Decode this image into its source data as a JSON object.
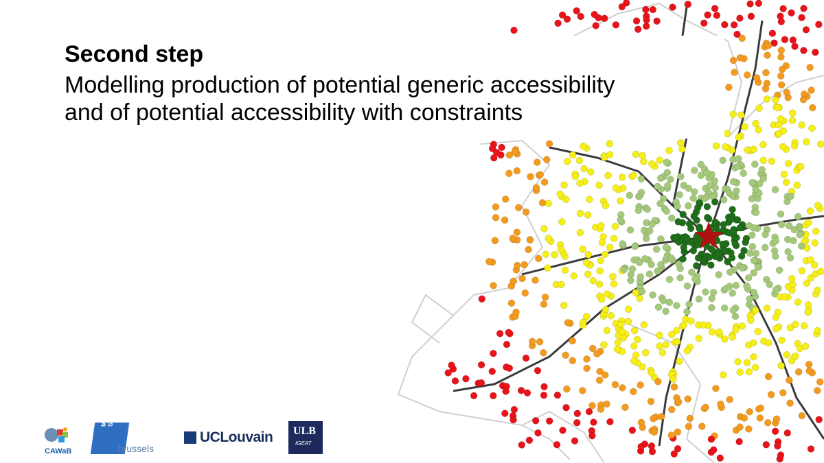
{
  "slide": {
    "step_title": "Second step",
    "subtitle_line1": "Modelling production of potential generic accessibility",
    "subtitle_line2": "and of potential accessibility with constraints"
  },
  "map": {
    "marker": "star",
    "colors": {
      "red": "#e8141a",
      "orange": "#f39b1e",
      "yellow": "#f6ef17",
      "light_green": "#a5c97a",
      "dark_green": "#1f6e1a",
      "star": "#b01212",
      "outline": "#cfcfcf",
      "road": "#3a3a3a"
    }
  },
  "logos": {
    "cawab": "CAWaB",
    "stib_mark": "MIVB STIB",
    "brussels": ".brussels",
    "uclouvain": "UCLouvain",
    "ulb": "ULB",
    "igeat": "IGEAT"
  }
}
